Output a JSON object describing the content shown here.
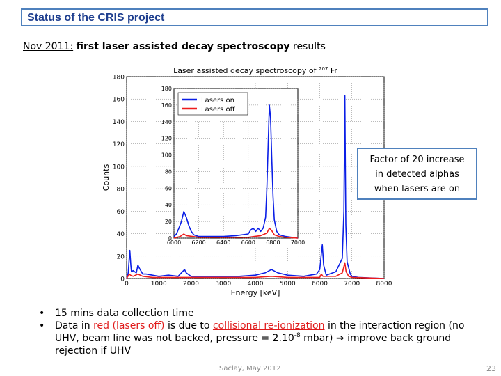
{
  "slide": {
    "title": "Status of the CRIS project",
    "subtitle_date": "Nov 2011:",
    "subtitle_bold": "first laser assisted decay spectroscopy",
    "subtitle_rest": "results",
    "callout_lines": [
      "Factor of 20 increase",
      "in detected alphas",
      "when lasers are on"
    ],
    "bullet_marker": "•",
    "bullet1": "15 mins data collection time",
    "bullet2_a": "Data in ",
    "bullet2_red": "red (lasers off)",
    "bullet2_b": " is due to ",
    "bullet2_red_u": "collisional re-ionization",
    "bullet2_c": " in the interaction region (no UHV, beam line was not backed, pressure = 2.10",
    "bullet2_sup": "-8",
    "bullet2_d": " mbar) ",
    "bullet2_arrow": "➔",
    "bullet2_e": " improve back ground rejection if UHV",
    "footer": "Saclay, May 2012",
    "page_number": "23"
  },
  "colors": {
    "lasers_on": "#0a1ee6",
    "lasers_off": "#ee1c1c",
    "frame": "#4f81bd",
    "title": "#1f3f8f"
  },
  "chart_data": [
    {
      "type": "line",
      "title": "Laser assisted decay spectroscopy of",
      "title_superscript": "207",
      "title_element": "Fr",
      "xlabel": "Energy [keV]",
      "ylabel": "Counts",
      "xlim": [
        0,
        8000
      ],
      "ylim": [
        0,
        180
      ],
      "xticks": [
        0,
        1000,
        2000,
        3000,
        4000,
        5000,
        6000,
        7000,
        8000
      ],
      "yticks": [
        0,
        20,
        40,
        60,
        80,
        100,
        120,
        140,
        160,
        180
      ],
      "grid": true,
      "series": [
        {
          "name": "Lasers on",
          "x": [
            0,
            50,
            80,
            100,
            130,
            150,
            200,
            300,
            350,
            400,
            500,
            600,
            800,
            1000,
            1300,
            1600,
            1800,
            1850,
            2000,
            2200,
            2500,
            3000,
            3500,
            4000,
            4300,
            4500,
            4700,
            5000,
            5500,
            5900,
            6000,
            6050,
            6080,
            6120,
            6200,
            6500,
            6700,
            6750,
            6780,
            6810,
            6850,
            6950,
            7000,
            7200,
            8000
          ],
          "y": [
            0,
            5,
            18,
            25,
            12,
            6,
            7,
            5,
            12,
            9,
            4,
            4,
            3,
            2,
            3,
            2,
            8,
            5,
            2,
            2,
            2,
            2,
            2,
            3,
            5,
            8,
            5,
            3,
            2,
            4,
            8,
            22,
            30,
            12,
            3,
            6,
            18,
            60,
            163,
            48,
            15,
            4,
            2,
            1,
            0
          ]
        },
        {
          "name": "Lasers off",
          "x": [
            0,
            80,
            120,
            200,
            350,
            500,
            800,
            1000,
            1500,
            2000,
            3000,
            4000,
            4500,
            5000,
            6000,
            6050,
            6100,
            6500,
            6700,
            6780,
            6820,
            6900,
            7000,
            8000
          ],
          "y": [
            0,
            4,
            3,
            2,
            4,
            2,
            1,
            1,
            1,
            1,
            1,
            1,
            2,
            1,
            1,
            4,
            2,
            2,
            5,
            14,
            6,
            2,
            1,
            0
          ]
        }
      ]
    },
    {
      "type": "line",
      "title": "",
      "xlim": [
        6000,
        7000
      ],
      "ylim": [
        0,
        180
      ],
      "xticks": [
        6000,
        6200,
        6400,
        6600,
        6800,
        7000
      ],
      "yticks": [
        0,
        20,
        40,
        60,
        80,
        100,
        120,
        140,
        160,
        180
      ],
      "grid": true,
      "legend": "top-left",
      "series": [
        {
          "name": "Lasers on",
          "x": [
            6000,
            6020,
            6040,
            6060,
            6080,
            6100,
            6120,
            6140,
            6160,
            6200,
            6300,
            6400,
            6500,
            6600,
            6620,
            6640,
            6660,
            6680,
            6700,
            6720,
            6740,
            6750,
            6760,
            6770,
            6780,
            6790,
            6800,
            6810,
            6830,
            6850,
            6900,
            7000
          ],
          "y": [
            2,
            5,
            12,
            20,
            32,
            25,
            15,
            8,
            4,
            2,
            2,
            2,
            3,
            5,
            10,
            12,
            8,
            12,
            8,
            12,
            25,
            60,
            110,
            160,
            145,
            95,
            50,
            22,
            8,
            4,
            2,
            0
          ]
        },
        {
          "name": "Lasers off",
          "x": [
            6000,
            6050,
            6080,
            6100,
            6150,
            6200,
            6400,
            6600,
            6650,
            6700,
            6750,
            6770,
            6790,
            6810,
            6850,
            6900,
            7000
          ],
          "y": [
            0,
            2,
            5,
            3,
            2,
            1,
            1,
            1,
            2,
            3,
            6,
            12,
            9,
            4,
            2,
            1,
            0
          ]
        }
      ]
    }
  ]
}
